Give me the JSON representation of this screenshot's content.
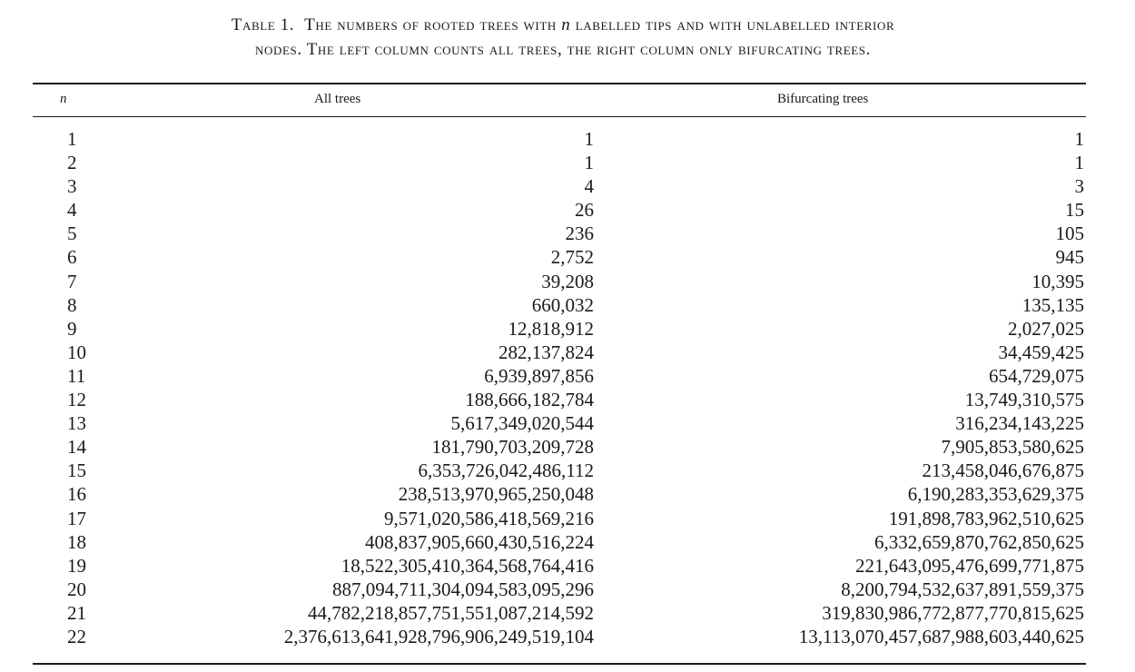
{
  "caption": {
    "label": "Table 1.",
    "part1": "The numbers of rooted trees with",
    "var": "n",
    "part2": "labelled tips and with unlabelled interior",
    "line2": "nodes. The left column counts all trees, the right column only bifurcating trees."
  },
  "headers": {
    "n": "n",
    "all": "All trees",
    "bifurcating": "Bifurcating trees"
  },
  "rows": [
    {
      "n": "1",
      "all": "1",
      "bif": "1"
    },
    {
      "n": "2",
      "all": "1",
      "bif": "1"
    },
    {
      "n": "3",
      "all": "4",
      "bif": "3"
    },
    {
      "n": "4",
      "all": "26",
      "bif": "15"
    },
    {
      "n": "5",
      "all": "236",
      "bif": "105"
    },
    {
      "n": "6",
      "all": "2,752",
      "bif": "945"
    },
    {
      "n": "7",
      "all": "39,208",
      "bif": "10,395"
    },
    {
      "n": "8",
      "all": "660,032",
      "bif": "135,135"
    },
    {
      "n": "9",
      "all": "12,818,912",
      "bif": "2,027,025"
    },
    {
      "n": "10",
      "all": "282,137,824",
      "bif": "34,459,425"
    },
    {
      "n": "11",
      "all": "6,939,897,856",
      "bif": "654,729,075"
    },
    {
      "n": "12",
      "all": "188,666,182,784",
      "bif": "13,749,310,575"
    },
    {
      "n": "13",
      "all": "5,617,349,020,544",
      "bif": "316,234,143,225"
    },
    {
      "n": "14",
      "all": "181,790,703,209,728",
      "bif": "7,905,853,580,625"
    },
    {
      "n": "15",
      "all": "6,353,726,042,486,112",
      "bif": "213,458,046,676,875"
    },
    {
      "n": "16",
      "all": "238,513,970,965,250,048",
      "bif": "6,190,283,353,629,375"
    },
    {
      "n": "17",
      "all": "9,571,020,586,418,569,216",
      "bif": "191,898,783,962,510,625"
    },
    {
      "n": "18",
      "all": "408,837,905,660,430,516,224",
      "bif": "6,332,659,870,762,850,625"
    },
    {
      "n": "19",
      "all": "18,522,305,410,364,568,764,416",
      "bif": "221,643,095,476,699,771,875"
    },
    {
      "n": "20",
      "all": "887,094,711,304,094,583,095,296",
      "bif": "8,200,794,532,637,891,559,375"
    },
    {
      "n": "21",
      "all": "44,782,218,857,751,551,087,214,592",
      "bif": "319,830,986,772,877,770,815,625"
    },
    {
      "n": "22",
      "all": "2,376,613,641,928,796,906,249,519,104",
      "bif": "13,113,070,457,687,988,603,440,625"
    }
  ]
}
